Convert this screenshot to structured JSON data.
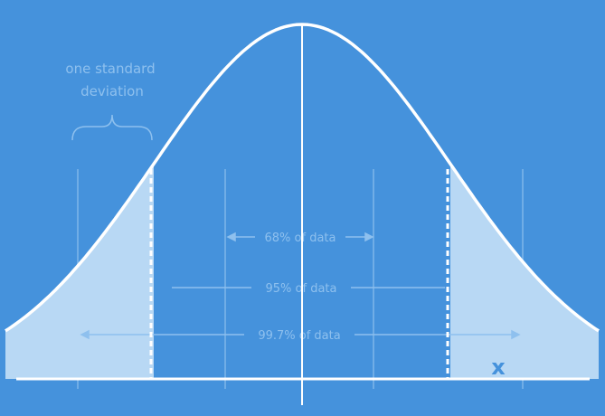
{
  "annotation": {
    "line1": "one standard",
    "line2": "deviation"
  },
  "ranges": {
    "sd1": "68% of data",
    "sd2": "95% of data",
    "sd3": "99.7% of data"
  },
  "marker": "x",
  "colors": {
    "background": "#4592dc",
    "curve": "#ffffff",
    "tail_fill": "#b8d8f4",
    "faint": "#8ec0ee"
  }
}
